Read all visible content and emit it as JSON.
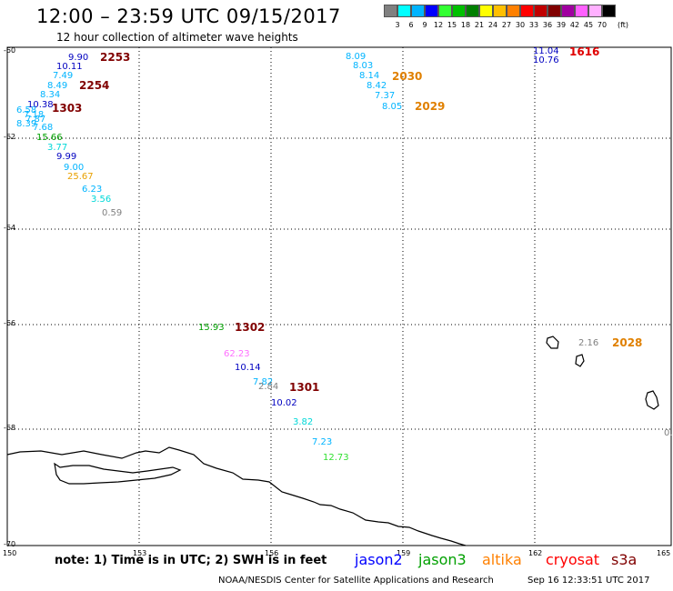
{
  "header": {
    "title": "12:00 – 23:59 UTC 09/15/2017",
    "subtitle": "12 hour collection of altimeter wave heights"
  },
  "legend": {
    "colors": [
      "#808080",
      "#00ffff",
      "#00b4ff",
      "#0000ff",
      "#32ff32",
      "#00c000",
      "#008000",
      "#ffff00",
      "#ffbf00",
      "#ff8000",
      "#ff0000",
      "#c00000",
      "#800000",
      "#a000a0",
      "#ff60ff",
      "#ffb0ff",
      "#000000"
    ],
    "labels": [
      "3",
      "6",
      "9",
      "12",
      "15",
      "18",
      "21",
      "24",
      "27",
      "30",
      "33",
      "36",
      "39",
      "42",
      "45",
      "70"
    ],
    "unit": "(ft)"
  },
  "axes": {
    "lat_labels": [
      "-60",
      "-62",
      "-64",
      "-66",
      "-68",
      "-70"
    ],
    "lon_labels": [
      "150",
      "153",
      "156",
      "159",
      "162",
      "165"
    ]
  },
  "observations": [
    {
      "t": "9.90",
      "c": "#0000c0"
    },
    {
      "t": "10.11",
      "c": "#0000c0"
    },
    {
      "t": "7.49",
      "c": "#00b4ff"
    },
    {
      "t": "8.49",
      "c": "#00b4ff"
    },
    {
      "t": "8.34",
      "c": "#00b4ff"
    },
    {
      "t": "10.38",
      "c": "#0000c0"
    },
    {
      "t": "6.58",
      "c": "#00b4ff"
    },
    {
      "t": "7.18",
      "c": "#00b4ff"
    },
    {
      "t": "7.87",
      "c": "#00b4ff"
    },
    {
      "t": "8.39",
      "c": "#00b4ff"
    },
    {
      "t": "7.68",
      "c": "#00b4ff"
    },
    {
      "t": "15.66",
      "c": "#00a000"
    },
    {
      "t": "3.77",
      "c": "#00d8d8"
    },
    {
      "t": "9.99",
      "c": "#0000c0"
    },
    {
      "t": "9.00",
      "c": "#00b4ff"
    },
    {
      "t": "25.67",
      "c": "#e8a000"
    },
    {
      "t": "6.23",
      "c": "#00b4ff"
    },
    {
      "t": "3.56",
      "c": "#00d8d8"
    },
    {
      "t": "0.59",
      "c": "#808080"
    },
    {
      "t": "8.09",
      "c": "#00b4ff"
    },
    {
      "t": "8.03",
      "c": "#00b4ff"
    },
    {
      "t": "8.14",
      "c": "#00b4ff"
    },
    {
      "t": "8.42",
      "c": "#00b4ff"
    },
    {
      "t": "7.37",
      "c": "#00b4ff"
    },
    {
      "t": "8.05",
      "c": "#00b4ff"
    },
    {
      "t": "11.04",
      "c": "#0000c0"
    },
    {
      "t": "10.76",
      "c": "#0000c0"
    },
    {
      "t": "15.93",
      "c": "#00a000"
    },
    {
      "t": "62.23",
      "c": "#ff70ff"
    },
    {
      "t": "10.14",
      "c": "#0000c0"
    },
    {
      "t": "7.82",
      "c": "#00b4ff"
    },
    {
      "t": "2.84",
      "c": "#808080"
    },
    {
      "t": "10.02",
      "c": "#0000c0"
    },
    {
      "t": "3.82",
      "c": "#00d8d8"
    },
    {
      "t": "7.23",
      "c": "#00b4ff"
    },
    {
      "t": "12.73",
      "c": "#32e032"
    },
    {
      "t": "2.16",
      "c": "#808080"
    },
    {
      "t": "0.",
      "c": "#808080"
    }
  ],
  "time_labels": [
    {
      "t": "2253",
      "c": "#800000"
    },
    {
      "t": "2254",
      "c": "#800000"
    },
    {
      "t": "1303",
      "c": "#800000"
    },
    {
      "t": "2030",
      "c": "#e08000"
    },
    {
      "t": "2029",
      "c": "#e08000"
    },
    {
      "t": "1616",
      "c": "#e00000"
    },
    {
      "t": "1302",
      "c": "#800000"
    },
    {
      "t": "1301",
      "c": "#800000"
    },
    {
      "t": "2028",
      "c": "#e08000"
    }
  ],
  "footer": {
    "note": "note:  1) Time is in UTC;  2) SWH is in feet",
    "missions": [
      {
        "name": "jason2",
        "c": "#0000ff"
      },
      {
        "name": "jason3",
        "c": "#00a000"
      },
      {
        "name": "altika",
        "c": "#ff8000"
      },
      {
        "name": "cryosat",
        "c": "#ff0000"
      },
      {
        "name": "s3a",
        "c": "#800000"
      }
    ],
    "credit": "NOAA/NESDIS Center for Satellite Applications and Research",
    "timestamp": "Sep 16 12:33:51 UTC 2017"
  }
}
